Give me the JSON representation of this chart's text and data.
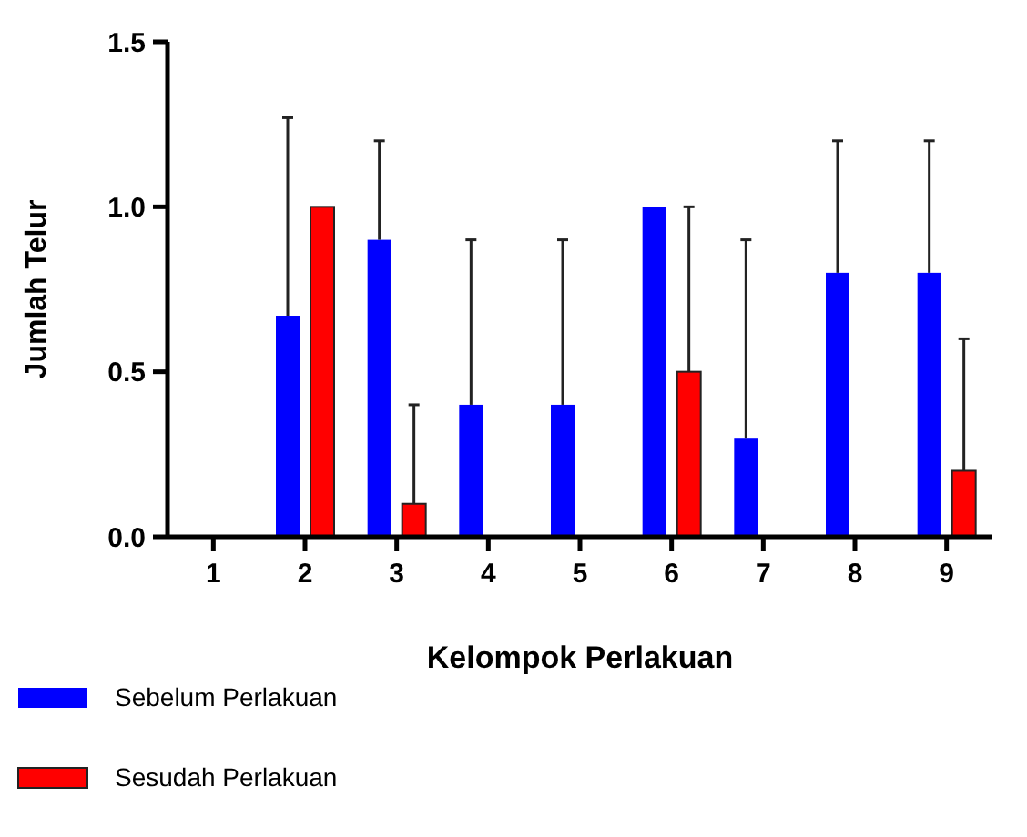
{
  "chart_data": {
    "type": "bar",
    "xlabel": "Kelompok Perlakuan",
    "ylabel": "Jumlah Telur",
    "categories": [
      "1",
      "2",
      "3",
      "4",
      "5",
      "6",
      "7",
      "8",
      "9"
    ],
    "ylim": [
      0,
      1.5
    ],
    "yticks": [
      {
        "value": 0,
        "label": "0.0"
      },
      {
        "value": 0.5,
        "label": "0.5"
      },
      {
        "value": 1,
        "label": "1.0"
      },
      {
        "value": 1.5,
        "label": "1.5"
      }
    ],
    "legend": "bottom left",
    "grid": false,
    "series": [
      {
        "name": "Sebelum Perlakuan",
        "color": "#0000ff",
        "values": [
          0,
          0.67,
          0.9,
          0.4,
          0.4,
          1.0,
          0.3,
          0.8,
          0.8
        ],
        "errors": [
          null,
          [
            0.67,
            1.27
          ],
          [
            0.9,
            1.2
          ],
          [
            0.4,
            0.9
          ],
          [
            0.4,
            0.9
          ],
          null,
          [
            0.3,
            0.9
          ],
          [
            0.8,
            1.2
          ],
          [
            0.8,
            1.2
          ]
        ]
      },
      {
        "name": "Sesudah Perlakuan",
        "color": "#ff0000",
        "values": [
          0,
          1.0,
          0.1,
          0,
          0,
          0.5,
          0,
          0,
          0.2
        ],
        "errors": [
          null,
          null,
          [
            0.1,
            0.4
          ],
          null,
          null,
          [
            0.5,
            1.0
          ],
          null,
          null,
          [
            0.2,
            0.6
          ]
        ]
      }
    ]
  }
}
